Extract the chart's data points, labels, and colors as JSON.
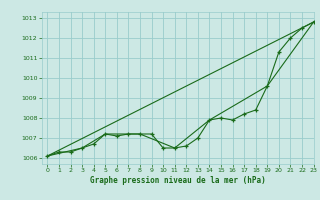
{
  "title": "Graphe pression niveau de la mer (hPa)",
  "bg_color": "#cce8e4",
  "grid_color": "#99cccc",
  "line_color": "#1a6b1a",
  "xlim": [
    -0.5,
    23
  ],
  "ylim": [
    1005.7,
    1013.3
  ],
  "yticks": [
    1006,
    1007,
    1008,
    1009,
    1010,
    1011,
    1012,
    1013
  ],
  "xticks": [
    0,
    1,
    2,
    3,
    4,
    5,
    6,
    7,
    8,
    9,
    10,
    11,
    12,
    13,
    14,
    15,
    16,
    17,
    18,
    19,
    20,
    21,
    22,
    23
  ],
  "line1": {
    "x": [
      0,
      1,
      2,
      3,
      4,
      5,
      6,
      7,
      8,
      9,
      10,
      11,
      12,
      13,
      14,
      15,
      16,
      17,
      18,
      19,
      20,
      21,
      22,
      23
    ],
    "y": [
      1006.1,
      1006.3,
      1006.3,
      1006.5,
      1006.7,
      1007.2,
      1007.1,
      1007.2,
      1007.2,
      1007.2,
      1006.5,
      1006.5,
      1006.6,
      1007.0,
      1007.9,
      1008.0,
      1007.9,
      1008.2,
      1008.4,
      1009.6,
      1011.3,
      1012.0,
      1012.5,
      1012.8
    ]
  },
  "line2": {
    "x": [
      0,
      23
    ],
    "y": [
      1006.1,
      1012.8
    ]
  },
  "line3": {
    "x": [
      0,
      3,
      5,
      8,
      11,
      14,
      19,
      23
    ],
    "y": [
      1006.1,
      1006.5,
      1007.2,
      1007.2,
      1006.5,
      1007.9,
      1009.6,
      1012.8
    ]
  }
}
